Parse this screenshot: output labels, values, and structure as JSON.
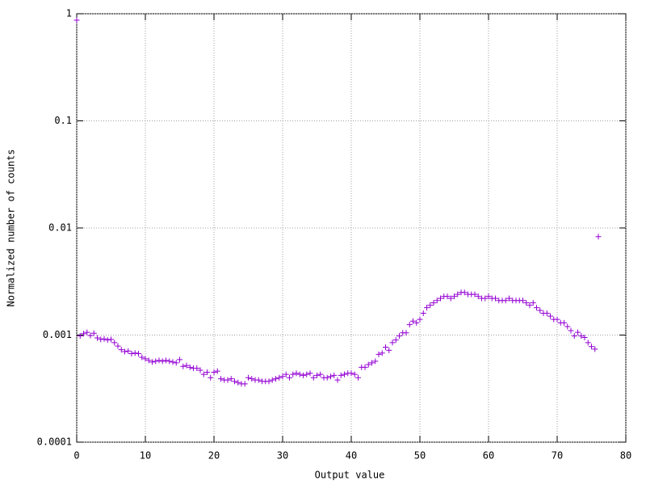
{
  "chart_data": {
    "type": "scatter",
    "x_label": "Output value",
    "y_label": "Normalized number of counts",
    "log_y": true,
    "grid": true,
    "color": "#9400d3",
    "xlim": [
      0,
      80
    ],
    "xticks": [
      0,
      10,
      20,
      30,
      40,
      50,
      60,
      70,
      80
    ],
    "ylim": [
      0.0001,
      1
    ],
    "yticks": [
      0.0001,
      0.001,
      0.01,
      0.1,
      1
    ],
    "x": [
      0,
      0.5,
      1,
      1.5,
      2,
      2.5,
      3,
      3.5,
      4,
      4.5,
      5,
      5.5,
      6,
      6.5,
      7,
      7.5,
      8,
      8.5,
      9,
      9.5,
      10,
      10.5,
      11,
      11.5,
      12,
      12.5,
      13,
      13.5,
      14,
      14.5,
      15,
      15.5,
      16,
      16.5,
      17,
      17.5,
      18,
      18.5,
      19,
      19.5,
      20,
      20.5,
      21,
      21.5,
      22,
      22.5,
      23,
      23.5,
      24,
      24.5,
      25,
      25.5,
      26,
      26.5,
      27,
      27.5,
      28,
      28.5,
      29,
      29.5,
      30,
      30.5,
      31,
      31.5,
      32,
      32.5,
      33,
      33.5,
      34,
      34.5,
      35,
      35.5,
      36,
      36.5,
      37,
      37.5,
      38,
      38.5,
      39,
      39.5,
      40,
      40.5,
      41,
      41.5,
      42,
      42.5,
      43,
      43.5,
      44,
      44.5,
      45,
      45.5,
      46,
      46.5,
      47,
      47.5,
      48,
      48.5,
      49,
      49.5,
      50,
      50.5,
      51,
      51.5,
      52,
      52.5,
      53,
      53.5,
      54,
      54.5,
      55,
      55.5,
      56,
      56.5,
      57,
      57.5,
      58,
      58.5,
      59,
      59.5,
      60,
      60.5,
      61,
      61.5,
      62,
      62.5,
      63,
      63.5,
      64,
      64.5,
      65,
      65.5,
      66,
      66.5,
      67,
      67.5,
      68,
      68.5,
      69,
      69.5,
      70,
      70.5,
      71,
      71.5,
      72,
      72.5,
      73,
      73.5,
      74,
      74.5,
      75,
      75.5,
      76
    ],
    "values": [
      0.87,
      0.00098,
      0.00103,
      0.00106,
      0.00099,
      0.00104,
      0.00094,
      0.00091,
      0.00092,
      0.0009,
      0.00091,
      0.00085,
      0.00079,
      0.00073,
      0.0007,
      0.00071,
      0.00067,
      0.00068,
      0.00067,
      0.00062,
      0.0006,
      0.00058,
      0.00056,
      0.00057,
      0.00058,
      0.00057,
      0.00058,
      0.00057,
      0.00056,
      0.00055,
      0.00059,
      0.00051,
      0.00052,
      0.0005,
      0.00049,
      0.00049,
      0.00047,
      0.00043,
      0.00045,
      0.0004,
      0.00045,
      0.00046,
      0.00039,
      0.00038,
      0.00038,
      0.00039,
      0.00037,
      0.00036,
      0.00035,
      0.00035,
      0.0004,
      0.00039,
      0.00038,
      0.00038,
      0.00037,
      0.00037,
      0.00037,
      0.00038,
      0.00039,
      0.0004,
      0.00041,
      0.00043,
      0.0004,
      0.00043,
      0.00044,
      0.00043,
      0.00042,
      0.00043,
      0.00044,
      0.0004,
      0.00042,
      0.00043,
      0.0004,
      0.0004,
      0.00041,
      0.00042,
      0.00038,
      0.00042,
      0.00043,
      0.00044,
      0.00044,
      0.00043,
      0.0004,
      0.0005,
      0.0005,
      0.00053,
      0.00055,
      0.00057,
      0.00066,
      0.00068,
      0.00077,
      0.00072,
      0.00085,
      0.0009,
      0.00098,
      0.00105,
      0.00105,
      0.00125,
      0.00135,
      0.0013,
      0.0014,
      0.0016,
      0.0018,
      0.0019,
      0.002,
      0.0021,
      0.0022,
      0.0023,
      0.0023,
      0.0022,
      0.0023,
      0.0024,
      0.0025,
      0.0025,
      0.0024,
      0.0024,
      0.0024,
      0.0023,
      0.0022,
      0.0022,
      0.0023,
      0.0022,
      0.0022,
      0.0021,
      0.0021,
      0.0021,
      0.0022,
      0.0021,
      0.0021,
      0.0021,
      0.0021,
      0.002,
      0.0019,
      0.002,
      0.0018,
      0.0017,
      0.0016,
      0.0016,
      0.0015,
      0.0014,
      0.0014,
      0.0013,
      0.0013,
      0.0012,
      0.0011,
      0.00098,
      0.00106,
      0.00098,
      0.00095,
      0.00085,
      0.00078,
      0.00074,
      0.0083
    ]
  }
}
